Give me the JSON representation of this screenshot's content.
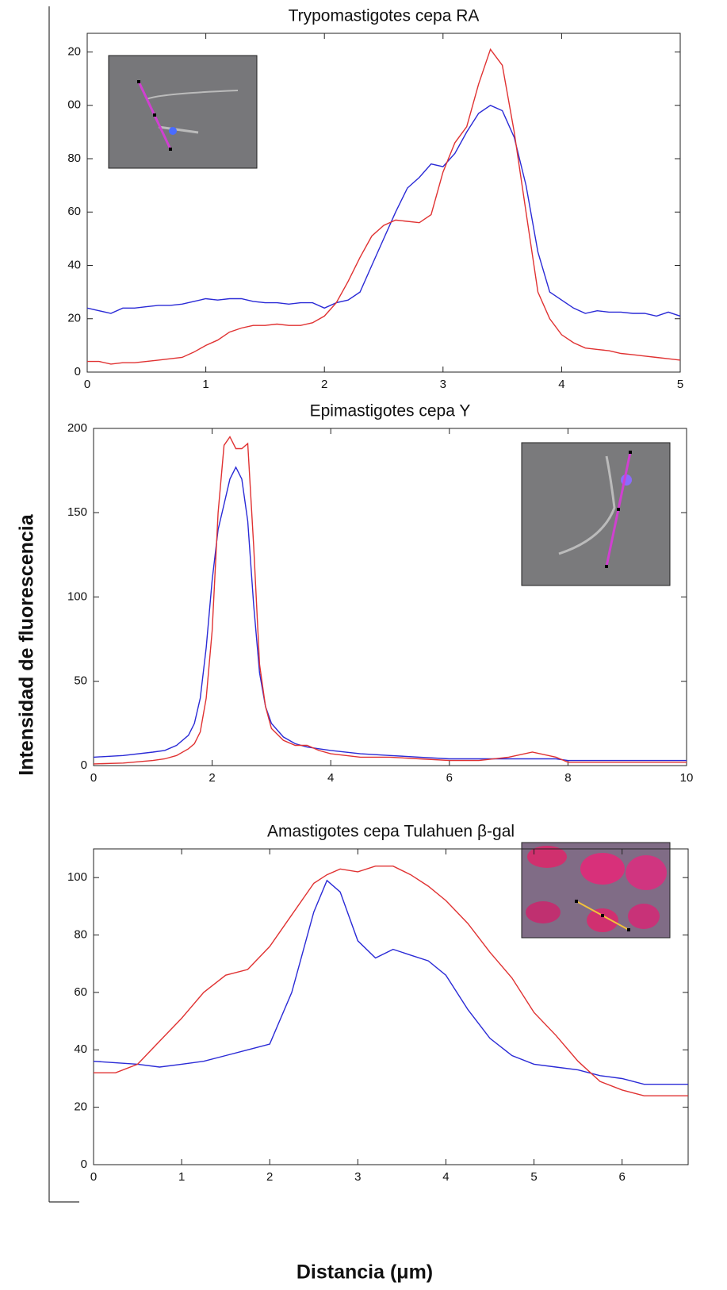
{
  "ylabel": "Intensidad de fluorescencia",
  "xlabel": "Distancia (μm)",
  "chart_data": [
    {
      "type": "line",
      "title": "Trypomastigotes cepa RA",
      "x": [
        0,
        0.1,
        0.2,
        0.3,
        0.4,
        0.5,
        0.6,
        0.7,
        0.8,
        0.9,
        1.0,
        1.1,
        1.2,
        1.3,
        1.4,
        1.5,
        1.6,
        1.7,
        1.8,
        1.9,
        2.0,
        2.1,
        2.2,
        2.3,
        2.4,
        2.5,
        2.6,
        2.7,
        2.8,
        2.9,
        3.0,
        3.1,
        3.2,
        3.3,
        3.4,
        3.5,
        3.6,
        3.7,
        3.8,
        3.9,
        4.0,
        4.1,
        4.2,
        4.3,
        4.4,
        4.5,
        4.6,
        4.7,
        4.8,
        4.9,
        5.0
      ],
      "series": [
        {
          "color": "#2a2ad6",
          "values": [
            24,
            23,
            22,
            24,
            24,
            24.5,
            25,
            25,
            25.5,
            26.5,
            27.5,
            27,
            27.5,
            27.5,
            26.5,
            26,
            26,
            25.5,
            26,
            26,
            24,
            26,
            27,
            30,
            40,
            50,
            60,
            69,
            73,
            78,
            77,
            82,
            90,
            97,
            100,
            98,
            88,
            70,
            45,
            30,
            27,
            24,
            22,
            23,
            22.5,
            22.5,
            22,
            22,
            21,
            22.5,
            21
          ]
        },
        {
          "color": "#e03232",
          "values": [
            4,
            4,
            3,
            3.5,
            3.5,
            4,
            4.5,
            5,
            5.5,
            7.5,
            10,
            12,
            15,
            16.5,
            17.5,
            17.5,
            18,
            17.5,
            17.5,
            18.5,
            21,
            26,
            34,
            43,
            51,
            55,
            57,
            56.5,
            56,
            59,
            75,
            86,
            92,
            108,
            121,
            115,
            90,
            60,
            30,
            20,
            14,
            11,
            9,
            8.5,
            8,
            7,
            6.5,
            6,
            5.5,
            5,
            4.5
          ]
        }
      ],
      "xlim": [
        0,
        5
      ],
      "xticks": [
        0,
        1,
        2,
        3,
        4,
        5
      ],
      "ylim": [
        0,
        127
      ],
      "yticks": [
        0,
        20,
        40,
        60,
        80,
        {
          "value": 100,
          "label": "00"
        },
        {
          "value": 120,
          "label": "20"
        }
      ]
    },
    {
      "type": "line",
      "title": "Epimastigotes cepa Y",
      "x": [
        0,
        0.5,
        1,
        1.2,
        1.4,
        1.6,
        1.7,
        1.8,
        1.9,
        2.0,
        2.1,
        2.2,
        2.3,
        2.4,
        2.5,
        2.6,
        2.7,
        2.8,
        2.9,
        3.0,
        3.2,
        3.4,
        3.6,
        3.8,
        4,
        4.5,
        5,
        5.5,
        6,
        6.5,
        7,
        7.4,
        7.8,
        8,
        8.5,
        9,
        9.5,
        10
      ],
      "series": [
        {
          "color": "#2a2ad6",
          "values": [
            5,
            6,
            8,
            9,
            12,
            18,
            25,
            40,
            70,
            110,
            140,
            155,
            170,
            177,
            170,
            145,
            95,
            55,
            35,
            25,
            17,
            13,
            11,
            10,
            9,
            7,
            6,
            5,
            4,
            4,
            4,
            4,
            4,
            3,
            3,
            3,
            3,
            3
          ]
        },
        {
          "color": "#e03232",
          "values": [
            1,
            1.5,
            3,
            4,
            6,
            10,
            13,
            20,
            40,
            80,
            150,
            190,
            195,
            188,
            188,
            191,
            130,
            60,
            35,
            22,
            15,
            12,
            12,
            9,
            7,
            5,
            5,
            4,
            3,
            3,
            5,
            8,
            5,
            2,
            2,
            2,
            2,
            2
          ]
        }
      ],
      "xlim": [
        0,
        10
      ],
      "xticks": [
        0,
        2,
        4,
        6,
        8,
        10
      ],
      "ylim": [
        0,
        200
      ],
      "yticks": [
        0,
        50,
        100,
        150,
        200
      ]
    },
    {
      "type": "line",
      "title": "Amastigotes cepa Tulahuen β-gal",
      "x": [
        0,
        0.25,
        0.5,
        0.75,
        1,
        1.25,
        1.5,
        1.75,
        2,
        2.25,
        2.5,
        2.65,
        2.8,
        3,
        3.2,
        3.4,
        3.6,
        3.8,
        4,
        4.25,
        4.5,
        4.75,
        5,
        5.25,
        5.5,
        5.75,
        6,
        6.25,
        6.5,
        6.75
      ],
      "series": [
        {
          "color": "#2a2ad6",
          "values": [
            36,
            35.5,
            35,
            34,
            35,
            36,
            38,
            40,
            42,
            60,
            88,
            99,
            95,
            78,
            72,
            75,
            73,
            71,
            66,
            54,
            44,
            38,
            35,
            34,
            33,
            31,
            30,
            28,
            28,
            28
          ]
        },
        {
          "color": "#e03232",
          "values": [
            32,
            32,
            35,
            43,
            51,
            60,
            66,
            68,
            76,
            87,
            98,
            101,
            103,
            102,
            104,
            104,
            101,
            97,
            92,
            84,
            74,
            65,
            53,
            45,
            36,
            29,
            26,
            24,
            24,
            24
          ]
        }
      ],
      "xlim": [
        0,
        6.75
      ],
      "xticks": [
        0,
        1,
        2,
        3,
        4,
        5,
        6
      ],
      "ylim": [
        0,
        110
      ],
      "yticks": [
        0,
        20,
        40,
        60,
        80,
        100
      ]
    }
  ]
}
